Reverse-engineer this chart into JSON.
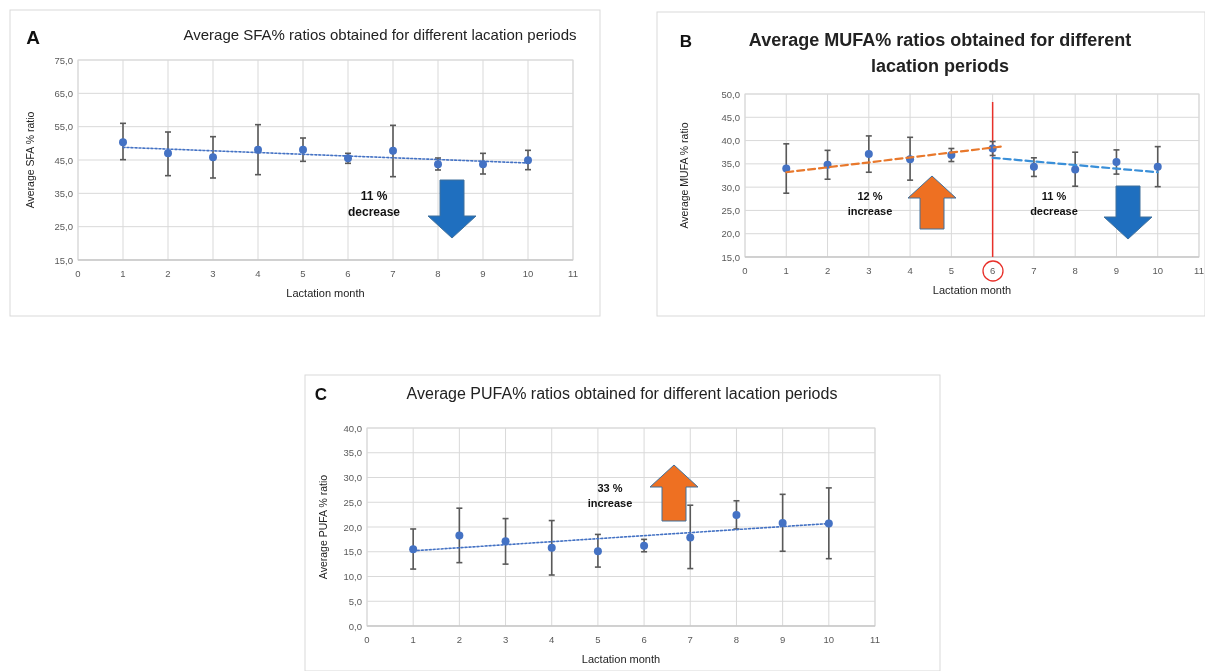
{
  "chart_data": [
    {
      "type": "scatter",
      "title": "Average SFA% ratios obtained for different lacation periods",
      "xlabel": "Lactation month",
      "ylabel": "Average SFA % ratio",
      "annotations": [
        "A",
        "11 %\ndecrease"
      ],
      "xlim": [
        0,
        11
      ],
      "xticks": [
        0,
        1,
        2,
        3,
        4,
        5,
        6,
        7,
        8,
        9,
        10,
        11
      ],
      "ylim": [
        15,
        75
      ],
      "yticks": [
        {
          "value": 15,
          "label": "15,0"
        },
        {
          "value": 25,
          "label": "25,0"
        },
        {
          "value": 35,
          "label": "35,0"
        },
        {
          "value": 45,
          "label": "45,0"
        },
        {
          "value": 55,
          "label": "55,0"
        },
        {
          "value": 65,
          "label": "65,0"
        },
        {
          "value": 75,
          "label": "75,0"
        }
      ],
      "grid": true,
      "marker": "circle",
      "series": [
        {
          "color": "#4472c4",
          "x": [
            1,
            2,
            3,
            4,
            5,
            6,
            7,
            8,
            9,
            10
          ],
          "values": [
            50.3,
            47.0,
            45.8,
            48.1,
            48.1,
            45.5,
            47.8,
            43.7,
            43.7,
            44.9
          ],
          "errors": [
            [
              45.1,
              56.0
            ],
            [
              40.3,
              53.4
            ],
            [
              39.6,
              52.0
            ],
            [
              40.6,
              55.6
            ],
            [
              44.6,
              51.6
            ],
            [
              44.0,
              47.0
            ],
            [
              40.0,
              55.4
            ],
            [
              42.0,
              45.6
            ],
            [
              40.8,
              47.0
            ],
            [
              42.1,
              47.9
            ]
          ]
        },
        {
          "type": "line",
          "marker": "none",
          "color": "#4472c4",
          "line_style": "dotted",
          "x": [
            1,
            10
          ],
          "values": [
            48.8,
            44.1
          ]
        }
      ]
    },
    {
      "type": "scatter",
      "title": "Average MUFA% ratios obtained for different lacation periods",
      "xlabel": "Lactation month",
      "ylabel": "Average MUFA % ratio",
      "annotations": [
        "B",
        "12 %\nincrease",
        "11 %\ndecrease"
      ],
      "xlim": [
        0,
        11
      ],
      "xticks": [
        0,
        1,
        2,
        3,
        4,
        5,
        6,
        7,
        8,
        9,
        10,
        11
      ],
      "ylim": [
        15,
        50
      ],
      "yticks": [
        {
          "value": 15,
          "label": "15,0"
        },
        {
          "value": 20,
          "label": "20,0"
        },
        {
          "value": 25,
          "label": "25,0"
        },
        {
          "value": 30,
          "label": "30,0"
        },
        {
          "value": 35,
          "label": "35,0"
        },
        {
          "value": 40,
          "label": "40,0"
        },
        {
          "value": 45,
          "label": "45,0"
        },
        {
          "value": 50,
          "label": "50,0"
        }
      ],
      "grid": true,
      "marker": "circle",
      "ref_lines": [
        {
          "axis": "x",
          "value": 6,
          "color": "#e8302a"
        }
      ],
      "series": [
        {
          "color": "#4472c4",
          "x": [
            1,
            2,
            3,
            4,
            5,
            6,
            7,
            8,
            9,
            10
          ],
          "values": [
            34.0,
            34.8,
            37.1,
            36.0,
            36.9,
            38.3,
            34.4,
            33.8,
            35.4,
            34.4
          ],
          "errors": [
            [
              28.7,
              39.3
            ],
            [
              31.7,
              37.9
            ],
            [
              33.2,
              41.0
            ],
            [
              31.5,
              40.7
            ],
            [
              35.5,
              38.3
            ],
            [
              36.8,
              39.8
            ],
            [
              32.3,
              36.3
            ],
            [
              30.2,
              37.5
            ],
            [
              32.8,
              38.0
            ],
            [
              30.1,
              38.7
            ]
          ]
        },
        {
          "type": "line",
          "marker": "none",
          "color": "#e8782c",
          "line_style": "dashed",
          "x": [
            1,
            6.2
          ],
          "values": [
            33.2,
            38.7
          ]
        },
        {
          "type": "line",
          "marker": "none",
          "color": "#3a8fd8",
          "line_style": "dashed",
          "x": [
            6,
            10
          ],
          "values": [
            36.3,
            33.2
          ]
        }
      ]
    },
    {
      "type": "scatter",
      "title": "Average PUFA% ratios obtained for different lacation periods",
      "xlabel": "Lactation month",
      "ylabel": "Average PUFA % ratio",
      "annotations": [
        "C",
        "33 %\nincrease"
      ],
      "xlim": [
        0,
        11
      ],
      "xticks": [
        0,
        1,
        2,
        3,
        4,
        5,
        6,
        7,
        8,
        9,
        10,
        11
      ],
      "ylim": [
        0,
        40
      ],
      "yticks": [
        {
          "value": 0,
          "label": "0,0"
        },
        {
          "value": 5,
          "label": "5,0"
        },
        {
          "value": 10,
          "label": "10,0"
        },
        {
          "value": 15,
          "label": "15,0"
        },
        {
          "value": 20,
          "label": "20,0"
        },
        {
          "value": 25,
          "label": "25,0"
        },
        {
          "value": 30,
          "label": "30,0"
        },
        {
          "value": 35,
          "label": "35,0"
        },
        {
          "value": 40,
          "label": "40,0"
        }
      ],
      "grid": true,
      "marker": "circle",
      "series": [
        {
          "color": "#4472c4",
          "x": [
            1,
            2,
            3,
            4,
            5,
            6,
            7,
            8,
            9,
            10
          ],
          "values": [
            15.5,
            18.3,
            17.1,
            15.8,
            15.1,
            16.2,
            17.9,
            22.4,
            20.8,
            20.7
          ],
          "errors": [
            [
              11.5,
              19.6
            ],
            [
              12.8,
              23.8
            ],
            [
              12.5,
              21.7
            ],
            [
              10.3,
              21.3
            ],
            [
              11.9,
              18.5
            ],
            [
              15.0,
              17.5
            ],
            [
              11.6,
              24.4
            ],
            [
              19.6,
              25.3
            ],
            [
              15.1,
              26.6
            ],
            [
              13.6,
              27.9
            ]
          ]
        },
        {
          "type": "line",
          "marker": "none",
          "color": "#4472c4",
          "line_style": "dotted",
          "x": [
            1,
            10
          ],
          "values": [
            15.2,
            20.7
          ]
        }
      ]
    }
  ]
}
